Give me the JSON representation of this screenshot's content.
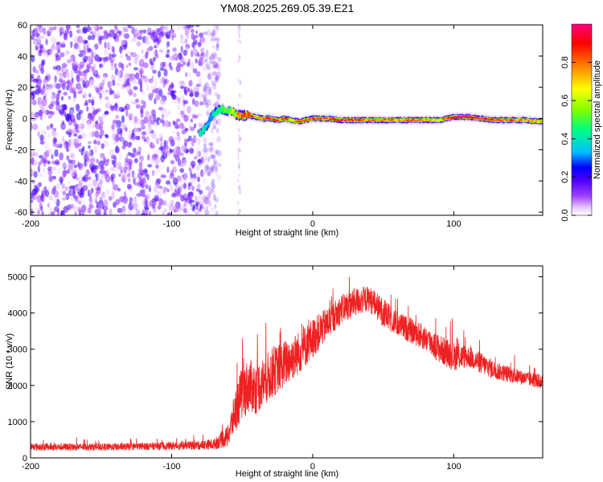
{
  "chart_data": {
    "title": "YM08.2025.269.05.39.E21",
    "charts": [
      {
        "type": "heatmap",
        "xlabel": "Height of straight line (km)",
        "ylabel": "Frequency (Hz)",
        "xlim": [
          -200,
          163
        ],
        "ylim": [
          -62,
          60
        ],
        "xticks": [
          -200,
          -100,
          0,
          100
        ],
        "yticks": [
          60,
          40,
          20,
          0,
          -20,
          -40,
          -60
        ],
        "colorbar": {
          "label": "Normalized spectral amplitude",
          "range": [
            0,
            1
          ],
          "ticks": [
            0.0,
            0.2,
            0.4,
            0.6,
            0.8
          ],
          "colors": [
            "#ffffff",
            "#e8c8ff",
            "#a040ff",
            "#5000ff",
            "#0000ff",
            "#00c0ff",
            "#00ff80",
            "#80ff00",
            "#ffff00",
            "#ff8000",
            "#ff0000",
            "#ff0080"
          ]
        },
        "noise_region": {
          "x_from": -200,
          "x_to": -70,
          "y_from": -62,
          "y_to": 60
        },
        "ridge": {
          "x": [
            -80,
            -78,
            -75,
            -72,
            -70,
            -67,
            -64,
            -61,
            -58,
            -55,
            -52,
            -50,
            -45,
            -40,
            -35,
            -30,
            -25,
            -20,
            -15,
            -10,
            -5,
            0,
            10,
            20,
            30,
            40,
            50,
            60,
            70,
            80,
            90,
            95,
            100,
            110,
            120,
            130,
            140,
            150,
            163
          ],
          "freq": [
            -10,
            -8,
            -4,
            1,
            3,
            5,
            6,
            4,
            5,
            3,
            2,
            2,
            2,
            1,
            0,
            0,
            -1,
            0,
            -1,
            -2,
            -1,
            0,
            0,
            -1,
            -1,
            -1,
            -1,
            -1,
            -1,
            -1,
            -1,
            0,
            1,
            1,
            0,
            -1,
            -1,
            -1,
            -2
          ],
          "amplitude": [
            0.4,
            0.4,
            0.35,
            0.3,
            0.4,
            0.45,
            0.5,
            0.5,
            0.55,
            0.6,
            0.8,
            0.9,
            0.85,
            0.7,
            0.75,
            0.95,
            0.8,
            0.85,
            0.7,
            0.85,
            0.75,
            0.8,
            0.85,
            0.9,
            0.85,
            0.8,
            0.8,
            0.75,
            0.8,
            0.75,
            0.65,
            0.85,
            0.95,
            0.95,
            0.9,
            0.85,
            0.8,
            0.75,
            0.7
          ]
        }
      },
      {
        "type": "line",
        "xlabel": "Height of straight line (km)",
        "ylabel": "SNR (10 * v/v)",
        "xlim": [
          -200,
          163
        ],
        "ylim": [
          0,
          5300
        ],
        "xticks": [
          -200,
          -100,
          0,
          100
        ],
        "yticks": [
          0,
          1000,
          2000,
          3000,
          4000,
          5000
        ],
        "color": "#ee2222",
        "series": [
          {
            "name": "SNR",
            "x": [
              -200,
              -180,
              -160,
              -140,
              -120,
              -100,
              -80,
              -70,
              -60,
              -55,
              -50,
              -45,
              -40,
              -30,
              -20,
              -10,
              0,
              10,
              20,
              30,
              40,
              50,
              60,
              70,
              80,
              90,
              100,
              110,
              120,
              130,
              140,
              150,
              163
            ],
            "y": [
              300,
              300,
              300,
              300,
              320,
              330,
              350,
              380,
              600,
              1300,
              1800,
              2000,
              1900,
              2300,
              2600,
              2900,
              3300,
              3700,
              4100,
              4300,
              4400,
              4000,
              3700,
              3500,
              3300,
              3000,
              2800,
              2800,
              2600,
              2400,
              2300,
              2200,
              2100
            ],
            "spread": [
              200,
              200,
              200,
              200,
              200,
              220,
              250,
              300,
              600,
              1200,
              1500,
              1500,
              1400,
              1400,
              1300,
              1200,
              1100,
              900,
              800,
              800,
              700,
              800,
              700,
              700,
              700,
              800,
              800,
              600,
              600,
              500,
              450,
              400,
              400
            ]
          }
        ]
      }
    ]
  }
}
